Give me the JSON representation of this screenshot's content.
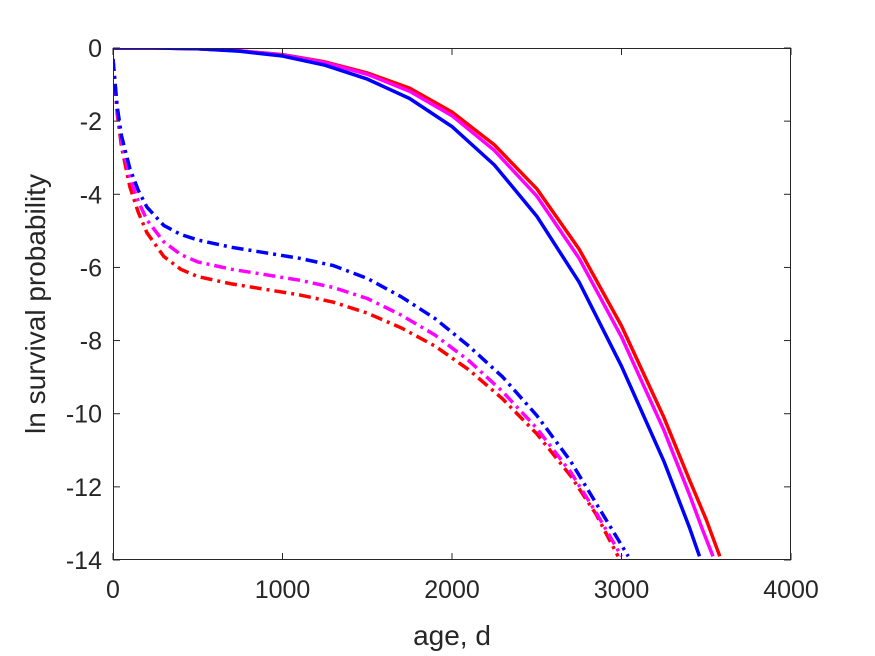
{
  "chart_data": {
    "type": "line",
    "title": "",
    "xlabel": "age, d",
    "ylabel": "ln survival probability",
    "xlim": [
      0,
      4000
    ],
    "ylim": [
      -14,
      0
    ],
    "xticks": [
      0,
      1000,
      2000,
      3000,
      4000
    ],
    "yticks": [
      0,
      -2,
      -4,
      -6,
      -8,
      -10,
      -12,
      -14
    ],
    "xtick_labels": [
      "0",
      "1000",
      "2000",
      "3000",
      "4000"
    ],
    "ytick_labels": [
      "0",
      "-2",
      "-4",
      "-6",
      "-8",
      "-10",
      "-12",
      "-14"
    ],
    "grid": false,
    "legend": "none",
    "series": [
      {
        "color": "#ff0000",
        "style": "solid",
        "points": [
          [
            0,
            0
          ],
          [
            250,
            0
          ],
          [
            500,
            -0.02
          ],
          [
            750,
            -0.08
          ],
          [
            1000,
            -0.18
          ],
          [
            1250,
            -0.38
          ],
          [
            1500,
            -0.68
          ],
          [
            1750,
            -1.1
          ],
          [
            2000,
            -1.75
          ],
          [
            2250,
            -2.65
          ],
          [
            2500,
            -3.85
          ],
          [
            2750,
            -5.5
          ],
          [
            3000,
            -7.6
          ],
          [
            3250,
            -10.1
          ],
          [
            3400,
            -11.8
          ],
          [
            3500,
            -12.9
          ],
          [
            3580,
            -13.9
          ]
        ]
      },
      {
        "color": "#ff00ff",
        "style": "solid",
        "points": [
          [
            0,
            0
          ],
          [
            250,
            0
          ],
          [
            500,
            -0.02
          ],
          [
            750,
            -0.08
          ],
          [
            1000,
            -0.19
          ],
          [
            1250,
            -0.4
          ],
          [
            1500,
            -0.72
          ],
          [
            1750,
            -1.18
          ],
          [
            2000,
            -1.85
          ],
          [
            2250,
            -2.8
          ],
          [
            2500,
            -4.05
          ],
          [
            2750,
            -5.75
          ],
          [
            3000,
            -7.9
          ],
          [
            3250,
            -10.45
          ],
          [
            3400,
            -12.2
          ],
          [
            3480,
            -13.2
          ],
          [
            3540,
            -13.9
          ]
        ]
      },
      {
        "color": "#0000ff",
        "style": "solid",
        "points": [
          [
            0,
            0
          ],
          [
            250,
            0
          ],
          [
            500,
            -0.02
          ],
          [
            750,
            -0.09
          ],
          [
            1000,
            -0.22
          ],
          [
            1250,
            -0.47
          ],
          [
            1500,
            -0.85
          ],
          [
            1750,
            -1.38
          ],
          [
            2000,
            -2.15
          ],
          [
            2250,
            -3.2
          ],
          [
            2500,
            -4.6
          ],
          [
            2750,
            -6.4
          ],
          [
            3000,
            -8.7
          ],
          [
            3250,
            -11.3
          ],
          [
            3400,
            -13.1
          ],
          [
            3460,
            -13.9
          ]
        ]
      },
      {
        "color": "#ff0000",
        "style": "dashdot",
        "points": [
          [
            0,
            -0.3
          ],
          [
            25,
            -1.8
          ],
          [
            50,
            -2.7
          ],
          [
            100,
            -3.8
          ],
          [
            150,
            -4.5
          ],
          [
            200,
            -5.05
          ],
          [
            300,
            -5.7
          ],
          [
            400,
            -6.05
          ],
          [
            500,
            -6.25
          ],
          [
            700,
            -6.45
          ],
          [
            900,
            -6.6
          ],
          [
            1100,
            -6.75
          ],
          [
            1300,
            -6.95
          ],
          [
            1500,
            -7.25
          ],
          [
            1700,
            -7.65
          ],
          [
            1900,
            -8.15
          ],
          [
            2100,
            -8.8
          ],
          [
            2300,
            -9.6
          ],
          [
            2500,
            -10.55
          ],
          [
            2700,
            -11.7
          ],
          [
            2850,
            -12.75
          ],
          [
            2980,
            -13.9
          ]
        ]
      },
      {
        "color": "#ff00ff",
        "style": "dashdot",
        "points": [
          [
            0,
            -0.3
          ],
          [
            25,
            -1.7
          ],
          [
            50,
            -2.55
          ],
          [
            100,
            -3.55
          ],
          [
            150,
            -4.2
          ],
          [
            200,
            -4.7
          ],
          [
            300,
            -5.3
          ],
          [
            400,
            -5.65
          ],
          [
            500,
            -5.85
          ],
          [
            700,
            -6.05
          ],
          [
            900,
            -6.2
          ],
          [
            1100,
            -6.35
          ],
          [
            1300,
            -6.55
          ],
          [
            1500,
            -6.85
          ],
          [
            1700,
            -7.3
          ],
          [
            1900,
            -7.85
          ],
          [
            2100,
            -8.55
          ],
          [
            2300,
            -9.4
          ],
          [
            2500,
            -10.4
          ],
          [
            2700,
            -11.6
          ],
          [
            2850,
            -12.7
          ],
          [
            3000,
            -13.9
          ]
        ]
      },
      {
        "color": "#0000ff",
        "style": "dashdot",
        "points": [
          [
            0,
            -0.3
          ],
          [
            25,
            -1.6
          ],
          [
            50,
            -2.4
          ],
          [
            100,
            -3.3
          ],
          [
            150,
            -3.9
          ],
          [
            200,
            -4.35
          ],
          [
            300,
            -4.85
          ],
          [
            400,
            -5.1
          ],
          [
            500,
            -5.25
          ],
          [
            700,
            -5.45
          ],
          [
            900,
            -5.6
          ],
          [
            1100,
            -5.75
          ],
          [
            1300,
            -5.95
          ],
          [
            1500,
            -6.3
          ],
          [
            1700,
            -6.8
          ],
          [
            1900,
            -7.4
          ],
          [
            2100,
            -8.15
          ],
          [
            2300,
            -9.0
          ],
          [
            2500,
            -10.05
          ],
          [
            2700,
            -11.3
          ],
          [
            2850,
            -12.45
          ],
          [
            3040,
            -13.9
          ]
        ]
      }
    ]
  }
}
